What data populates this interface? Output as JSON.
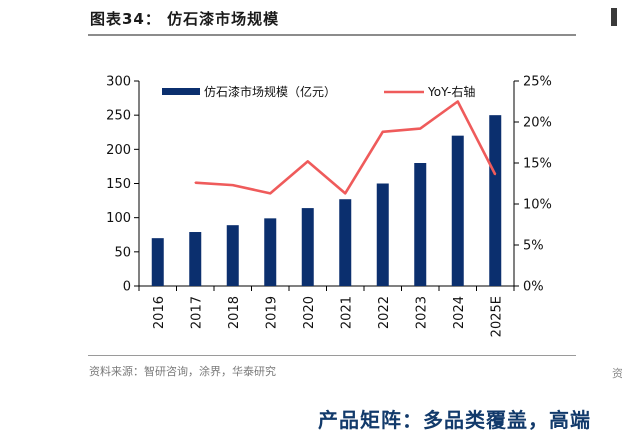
{
  "header": {
    "title": "图表34：   仿石漆市场规模"
  },
  "footer": {
    "source": "资料来源：智研咨询，涂界，华泰研究",
    "tagline": "产品矩阵：多品类覆盖，高端"
  },
  "chart_data": {
    "type": "bar",
    "categories": [
      "2016",
      "2017",
      "2018",
      "2019",
      "2020",
      "2021",
      "2022",
      "2023",
      "2024",
      "2025E"
    ],
    "series": [
      {
        "name": "仿石漆市场规模（亿元）",
        "type": "bar",
        "axis": "left",
        "color": "#0b2f6e",
        "values": [
          70,
          79,
          89,
          99,
          114,
          127,
          150,
          180,
          220,
          250
        ]
      },
      {
        "name": "YoY-右轴",
        "type": "line",
        "axis": "right",
        "color": "#ef5b5b",
        "values": [
          null,
          12.6,
          12.3,
          11.3,
          15.2,
          11.3,
          18.8,
          19.2,
          22.5,
          13.6
        ]
      }
    ],
    "left_axis": {
      "ylim": [
        0,
        300
      ],
      "ticks": [
        "0",
        "50",
        "100",
        "150",
        "200",
        "250",
        "300"
      ]
    },
    "right_axis": {
      "ylim": [
        0,
        25
      ],
      "ticks": [
        "0%",
        "5%",
        "10%",
        "15%",
        "20%",
        "25%"
      ]
    },
    "legend": {
      "placement": "top"
    },
    "grid": false
  }
}
